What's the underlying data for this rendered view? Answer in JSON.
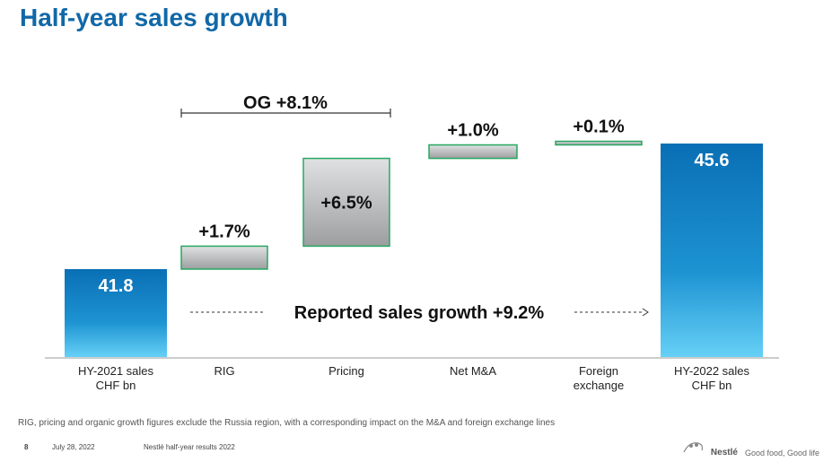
{
  "title": "Half-year sales growth",
  "chart_data": {
    "type": "bar",
    "subtype": "waterfall",
    "categories": [
      "HY-2021 sales\nCHF bn",
      "RIG",
      "Pricing",
      "Net M&A",
      "Foreign\nexchange",
      "HY-2022 sales\nCHF bn"
    ],
    "values": [
      41.8,
      1.7,
      6.5,
      1.0,
      0.1,
      45.6
    ],
    "labels": [
      "41.8",
      "+1.7%",
      "+6.5%",
      "+1.0%",
      "+0.1%",
      "45.6"
    ],
    "kinds": [
      "total",
      "step",
      "step",
      "step",
      "step",
      "total"
    ],
    "og_label": "OG +8.1%",
    "reported_label": "Reported sales growth +9.2%"
  },
  "colors": {
    "title": "#1168a8",
    "total_top": "#0a6fb5",
    "total_bottom": "#63cdf5",
    "step_fill": "#a8aaac",
    "step_border": "#27a861"
  },
  "footnote": "RIG, pricing and organic growth figures exclude the Russia region, with a corresponding impact on the M&A and foreign exchange lines",
  "footer": {
    "page": "8",
    "date": "July 28, 2022",
    "doc": "Nestlé half-year results 2022"
  },
  "brand": {
    "logo_text": "Nestlé",
    "tagline": "Good food, Good life"
  }
}
